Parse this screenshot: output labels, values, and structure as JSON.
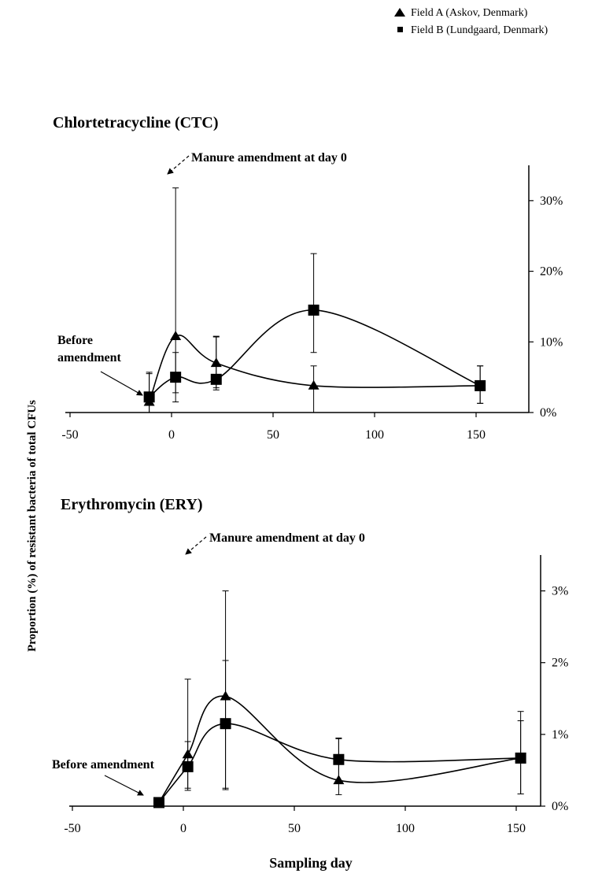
{
  "legend": {
    "items": [
      {
        "marker": "triangle",
        "label": "Field A (Askov, Denmark)"
      },
      {
        "marker": "square",
        "label": "Field B (Lundgaard, Denmark)"
      }
    ]
  },
  "ylabel": "Proportion (%) of resistant bacteria of total CFUs",
  "xlabel": "Sampling day",
  "colors": {
    "ink": "#000000",
    "background": "#ffffff"
  },
  "chart_data": [
    {
      "type": "line",
      "title": "Chlortetracycline (CTC)",
      "annotations": {
        "amendment": "Manure amendment at day 0",
        "before_line1": "Before",
        "before_line2": "amendment"
      },
      "xlim": [
        -50,
        170
      ],
      "xticks": [
        -50,
        0,
        50,
        100,
        150
      ],
      "ylim": [
        0,
        35
      ],
      "yticks": [
        0,
        10,
        20,
        30
      ],
      "ytick_labels": [
        "0%",
        "10%",
        "20%",
        "30%"
      ],
      "y_axis_position": "right",
      "series": [
        {
          "name": "Field A (Askov, Denmark)",
          "marker": "triangle",
          "x": [
            -11,
            2,
            22,
            70,
            152
          ],
          "y": [
            1.5,
            10.8,
            7.0,
            3.8,
            3.8
          ],
          "err_low": [
            3.0,
            8.0,
            3.5,
            3.8,
            2.5
          ],
          "err_high": [
            4.0,
            21.0,
            3.8,
            2.8,
            2.8
          ]
        },
        {
          "name": "Field B (Lundgaard, Denmark)",
          "marker": "square",
          "x": [
            -11,
            2,
            22,
            70,
            152
          ],
          "y": [
            2.2,
            5.0,
            4.7,
            14.5,
            3.8
          ],
          "err_low": [
            3.5,
            3.5,
            1.5,
            6.0,
            2.5
          ],
          "err_high": [
            3.5,
            3.5,
            6.0,
            8.0,
            2.8
          ]
        }
      ]
    },
    {
      "type": "line",
      "title": "Erythromycin (ERY)",
      "annotations": {
        "amendment": "Manure amendment at day 0",
        "before": "Before amendment"
      },
      "xlim": [
        -55,
        160
      ],
      "xticks": [
        -50,
        0,
        50,
        100,
        150
      ],
      "ylim": [
        0,
        3.5
      ],
      "yticks": [
        0,
        1,
        2,
        3
      ],
      "ytick_labels": [
        "0%",
        "1%",
        "2%",
        "3%"
      ],
      "y_axis_position": "right",
      "series": [
        {
          "name": "Field A (Askov, Denmark)",
          "marker": "triangle",
          "x": [
            -11,
            2,
            19,
            70,
            152
          ],
          "y": [
            0.05,
            0.72,
            1.53,
            0.36,
            0.67
          ],
          "err_low": [
            0.0,
            0.5,
            1.3,
            0.2,
            0.5
          ],
          "err_high": [
            0.0,
            1.05,
            0.5,
            0.58,
            0.52
          ]
        },
        {
          "name": "Field B (Lundgaard, Denmark)",
          "marker": "square",
          "x": [
            -11,
            2,
            19,
            70,
            152
          ],
          "y": [
            0.05,
            0.55,
            1.15,
            0.65,
            0.67
          ],
          "err_low": [
            0.0,
            0.3,
            0.9,
            0.3,
            0.5
          ],
          "err_high": [
            0.0,
            0.35,
            1.85,
            0.3,
            0.65
          ]
        }
      ]
    }
  ]
}
